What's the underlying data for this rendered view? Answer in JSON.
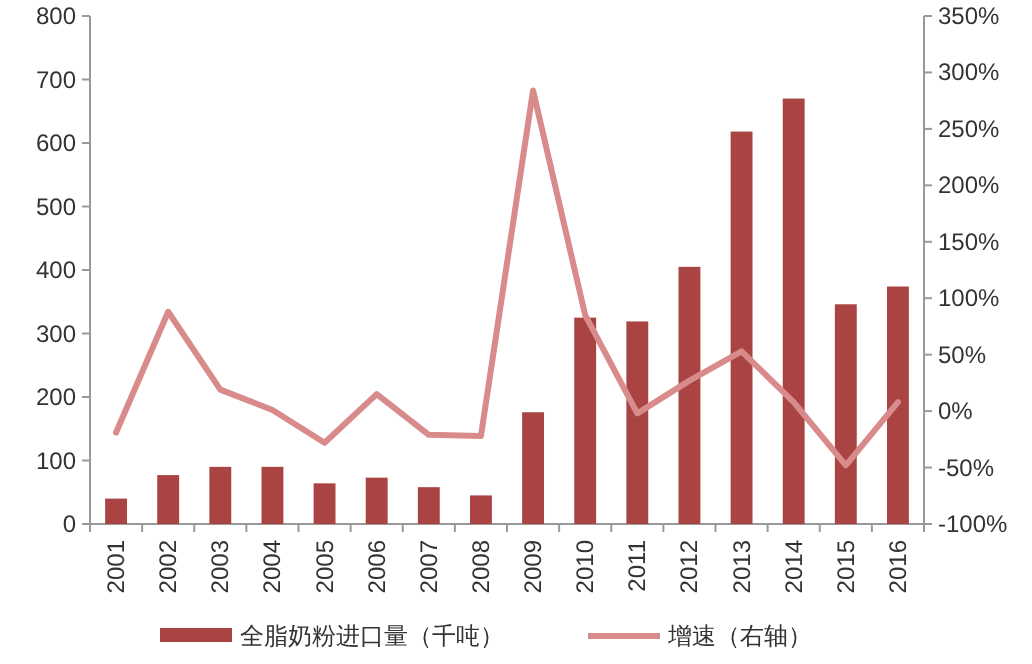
{
  "chart_data": {
    "type": "bar",
    "categories": [
      "2001",
      "2002",
      "2003",
      "2004",
      "2005",
      "2006",
      "2007",
      "2008",
      "2009",
      "2010",
      "2011",
      "2012",
      "2013",
      "2014",
      "2015",
      "2016"
    ],
    "series": [
      {
        "name": "全脂奶粉进口量（千吨）",
        "color": "#a94442",
        "values": [
          40,
          77,
          90,
          90,
          64,
          73,
          58,
          45,
          176,
          325,
          319,
          405,
          618,
          670,
          346,
          374
        ]
      },
      {
        "name": "增速（右轴）",
        "type": "line",
        "axis": "y2",
        "color": "#d98a8a",
        "values": [
          -19,
          88,
          19,
          1,
          -28,
          15,
          -21,
          -22,
          284,
          85,
          -2,
          27,
          53,
          8,
          -48,
          8
        ]
      }
    ],
    "ylim": [
      0,
      800
    ],
    "yticks": [
      0,
      100,
      200,
      300,
      400,
      500,
      600,
      700,
      800
    ],
    "y2lim": [
      -100,
      350
    ],
    "y2ticks": [
      {
        "value": -100,
        "label": "-100%"
      },
      {
        "value": -50,
        "label": "-50%"
      },
      {
        "value": 0,
        "label": "0%"
      },
      {
        "value": 50,
        "label": "50%"
      },
      {
        "value": 100,
        "label": "100%"
      },
      {
        "value": 150,
        "label": "150%"
      },
      {
        "value": 200,
        "label": "200%"
      },
      {
        "value": 250,
        "label": "250%"
      },
      {
        "value": 300,
        "label": "300%"
      },
      {
        "value": 350,
        "label": "350%"
      }
    ],
    "grid": false,
    "legend": "bottom",
    "line_style": "solid",
    "marker": "none"
  }
}
